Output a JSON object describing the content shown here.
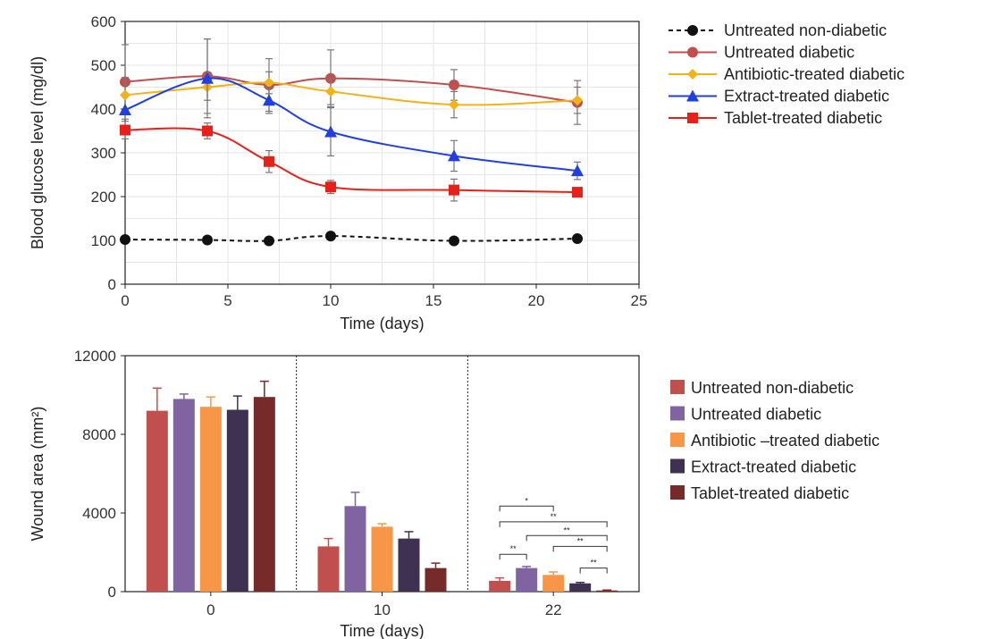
{
  "chart_data": [
    {
      "type": "line",
      "xlabel": "Time (days)",
      "ylabel": "Blood glucose level (mg/dl)",
      "xlim": [
        0,
        25
      ],
      "ylim": [
        0,
        600
      ],
      "xticks": [
        "0",
        "5",
        "10",
        "15",
        "20",
        "25"
      ],
      "yticks": [
        "0",
        "100",
        "200",
        "300",
        "400",
        "500",
        "600"
      ],
      "grid": true,
      "legend_position": "right",
      "series": [
        {
          "name": "Untreated non-diabetic",
          "color": "#111111",
          "marker": "circle",
          "dashed": true,
          "x": [
            0,
            4,
            7,
            10,
            16,
            22
          ],
          "y": [
            102,
            101,
            99,
            110,
            99,
            104
          ],
          "err": [
            0,
            0,
            0,
            0,
            0,
            0
          ]
        },
        {
          "name": "Untreated diabetic",
          "color": "#c0504d",
          "marker": "circle",
          "dashed": false,
          "x": [
            0,
            4,
            7,
            10,
            16,
            22
          ],
          "y": [
            462,
            475,
            455,
            470,
            455,
            415
          ],
          "err": [
            85,
            85,
            60,
            65,
            35,
            50
          ]
        },
        {
          "name": "Antibiotic-treated diabetic",
          "color": "#f2b21a",
          "marker": "diamond",
          "dashed": false,
          "x": [
            0,
            4,
            7,
            10,
            16,
            22
          ],
          "y": [
            432,
            450,
            460,
            440,
            410,
            420
          ],
          "err": [
            40,
            30,
            25,
            30,
            30,
            30
          ]
        },
        {
          "name": "Extract-treated diabetic",
          "color": "#1f3fe0",
          "marker": "triangle",
          "dashed": false,
          "x": [
            0,
            4,
            7,
            10,
            16,
            22
          ],
          "y": [
            398,
            470,
            420,
            348,
            293,
            259
          ],
          "err": [
            0,
            90,
            30,
            55,
            35,
            20
          ]
        },
        {
          "name": "Tablet-treated diabetic",
          "color": "#e8201a",
          "marker": "square",
          "dashed": false,
          "x": [
            0,
            4,
            7,
            10,
            16,
            22
          ],
          "y": [
            352,
            350,
            280,
            222,
            215,
            210
          ],
          "err": [
            20,
            18,
            25,
            15,
            25,
            10
          ]
        }
      ]
    },
    {
      "type": "bar",
      "xlabel": "Time (days)",
      "ylabel": "Wound area (mm²)",
      "categories": [
        "0",
        "10",
        "22"
      ],
      "ylim": [
        0,
        12000
      ],
      "yticks": [
        "0",
        "4000",
        "8000",
        "12000"
      ],
      "legend_position": "right",
      "series": [
        {
          "name": "Untreated non-diabetic",
          "color": "#c0504d",
          "values": [
            9200,
            2300,
            550
          ],
          "err": [
            1150,
            400,
            150
          ]
        },
        {
          "name": "Untreated diabetic",
          "color": "#8064a2",
          "values": [
            9800,
            4350,
            1200
          ],
          "err": [
            250,
            700,
            80
          ]
        },
        {
          "name": "Antibiotic –treated diabetic",
          "color": "#f79646",
          "values": [
            9400,
            3300,
            850
          ],
          "err": [
            500,
            150,
            150
          ]
        },
        {
          "name": "Extract-treated diabetic",
          "color": "#3f3151",
          "values": [
            9250,
            2700,
            420
          ],
          "err": [
            700,
            350,
            50
          ]
        },
        {
          "name": "Tablet-treated diabetic",
          "color": "#762a2a",
          "values": [
            9900,
            1200,
            60
          ],
          "err": [
            800,
            250,
            20
          ]
        }
      ],
      "significance": [
        {
          "label": "*",
          "from": 0,
          "to": 2
        },
        {
          "label": "**",
          "from": 0,
          "to": 4
        },
        {
          "label": "**",
          "from": 1,
          "to": 4
        },
        {
          "label": "**",
          "from": 2,
          "to": 4
        },
        {
          "label": "**",
          "from": 3,
          "to": 4
        },
        {
          "label": "**",
          "from": 0,
          "to": 1
        }
      ]
    }
  ]
}
